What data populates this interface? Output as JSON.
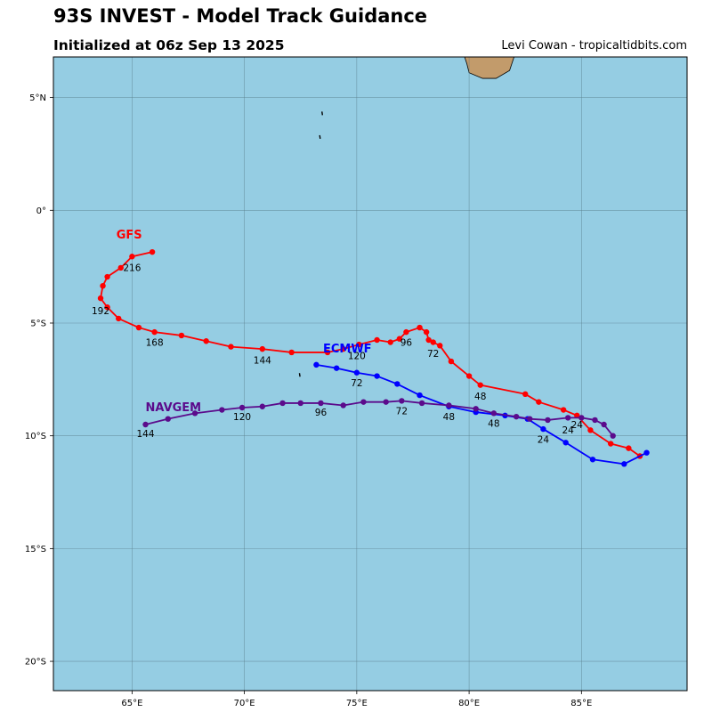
{
  "header": {
    "title": "93S INVEST - Model Track Guidance",
    "subtitle": "Initialized at 06z Sep 13 2025",
    "credit": "Levi Cowan - tropicaltidbits.com"
  },
  "colors": {
    "ocean": "#95cde3",
    "land": "#c29b6b",
    "grid": "#5a7f8c"
  },
  "chart_data": {
    "type": "map-tracks",
    "lon_range": [
      61.5,
      89.7
    ],
    "lat_range": [
      -21.3,
      6.8
    ],
    "x_ticks": [
      {
        "value": 65,
        "label": "65°E"
      },
      {
        "value": 70,
        "label": "70°E"
      },
      {
        "value": 75,
        "label": "75°E"
      },
      {
        "value": 80,
        "label": "80°E"
      },
      {
        "value": 85,
        "label": "85°E"
      }
    ],
    "y_ticks": [
      {
        "value": 5,
        "label": "5°N"
      },
      {
        "value": 0,
        "label": "0°"
      },
      {
        "value": -5,
        "label": "5°S"
      },
      {
        "value": -10,
        "label": "10°S"
      },
      {
        "value": -15,
        "label": "15°S"
      },
      {
        "value": -20,
        "label": "20°S"
      }
    ],
    "grid": true,
    "land": [
      {
        "name": "island-top",
        "points": [
          [
            79.8,
            6.8
          ],
          [
            82.0,
            6.8
          ],
          [
            81.8,
            6.2
          ],
          [
            81.2,
            5.85
          ],
          [
            80.6,
            5.85
          ],
          [
            80.0,
            6.1
          ],
          [
            79.9,
            6.5
          ]
        ]
      }
    ],
    "small_islands": [
      [
        73.45,
        4.3
      ],
      [
        73.35,
        3.25
      ],
      [
        72.45,
        -7.3
      ]
    ],
    "models": [
      {
        "name": "GFS",
        "color": "#ff0000",
        "label_lon": 64.3,
        "label_lat": -1.25,
        "points": [
          [
            87.6,
            -10.9
          ],
          [
            87.1,
            -10.55
          ],
          [
            86.3,
            -10.35
          ],
          [
            85.4,
            -9.75
          ],
          [
            84.8,
            -9.1
          ],
          [
            84.2,
            -8.85
          ],
          [
            83.1,
            -8.5
          ],
          [
            82.5,
            -8.15
          ],
          [
            80.5,
            -7.75
          ],
          [
            80.0,
            -7.35
          ],
          [
            79.2,
            -6.7
          ],
          [
            78.7,
            -6.0
          ],
          [
            78.4,
            -5.85
          ],
          [
            78.2,
            -5.75
          ],
          [
            78.1,
            -5.4
          ],
          [
            77.8,
            -5.2
          ],
          [
            77.2,
            -5.4
          ],
          [
            76.9,
            -5.7
          ],
          [
            76.5,
            -5.85
          ],
          [
            75.9,
            -5.75
          ],
          [
            75.1,
            -5.95
          ],
          [
            74.4,
            -6.15
          ],
          [
            73.7,
            -6.3
          ],
          [
            72.1,
            -6.3
          ],
          [
            70.8,
            -6.15
          ],
          [
            69.4,
            -6.05
          ],
          [
            68.3,
            -5.8
          ],
          [
            67.2,
            -5.55
          ],
          [
            66.0,
            -5.4
          ],
          [
            65.3,
            -5.2
          ],
          [
            64.4,
            -4.8
          ],
          [
            63.9,
            -4.3
          ],
          [
            63.6,
            -3.9
          ],
          [
            63.7,
            -3.35
          ],
          [
            63.9,
            -2.95
          ],
          [
            64.5,
            -2.55
          ],
          [
            65.0,
            -2.05
          ],
          [
            65.9,
            -1.85
          ]
        ],
        "labels": [
          {
            "text": "24",
            "lon": 84.4,
            "lat": -9.9
          },
          {
            "text": "48",
            "lon": 80.5,
            "lat": -8.4
          },
          {
            "text": "72",
            "lon": 78.4,
            "lat": -6.5
          },
          {
            "text": "96",
            "lon": 77.2,
            "lat": -6.0
          },
          {
            "text": "120",
            "lon": 75.0,
            "lat": -6.6
          },
          {
            "text": "144",
            "lon": 70.8,
            "lat": -6.8
          },
          {
            "text": "168",
            "lon": 66.0,
            "lat": -6.0
          },
          {
            "text": "192",
            "lon": 63.6,
            "lat": -4.6
          },
          {
            "text": "216",
            "lon": 65.0,
            "lat": -2.7
          }
        ]
      },
      {
        "name": "ECMWF",
        "color": "#0000ff",
        "label_lon": 73.5,
        "label_lat": -6.3,
        "points": [
          [
            87.9,
            -10.75
          ],
          [
            86.9,
            -11.25
          ],
          [
            85.5,
            -11.05
          ],
          [
            84.3,
            -10.3
          ],
          [
            83.3,
            -9.7
          ],
          [
            82.6,
            -9.25
          ],
          [
            81.6,
            -9.1
          ],
          [
            80.3,
            -8.95
          ],
          [
            79.1,
            -8.7
          ],
          [
            77.8,
            -8.2
          ],
          [
            76.8,
            -7.7
          ],
          [
            75.9,
            -7.35
          ],
          [
            75.0,
            -7.2
          ],
          [
            74.1,
            -7.0
          ],
          [
            73.2,
            -6.85
          ]
        ],
        "labels": [
          {
            "text": "24",
            "lon": 83.3,
            "lat": -10.3
          },
          {
            "text": "48",
            "lon": 79.1,
            "lat": -9.3
          },
          {
            "text": "72",
            "lon": 75.0,
            "lat": -7.8
          }
        ]
      },
      {
        "name": "NAVGEM",
        "color": "#5b0b8c",
        "label_lon": 65.6,
        "label_lat": -8.9,
        "points": [
          [
            86.4,
            -10.0
          ],
          [
            86.0,
            -9.5
          ],
          [
            85.6,
            -9.3
          ],
          [
            85.0,
            -9.2
          ],
          [
            84.4,
            -9.2
          ],
          [
            83.5,
            -9.3
          ],
          [
            82.7,
            -9.25
          ],
          [
            82.1,
            -9.15
          ],
          [
            81.1,
            -9.0
          ],
          [
            80.3,
            -8.8
          ],
          [
            79.1,
            -8.65
          ],
          [
            77.9,
            -8.55
          ],
          [
            77.0,
            -8.45
          ],
          [
            76.3,
            -8.5
          ],
          [
            75.3,
            -8.5
          ],
          [
            74.4,
            -8.65
          ],
          [
            73.4,
            -8.55
          ],
          [
            72.5,
            -8.55
          ],
          [
            71.7,
            -8.55
          ],
          [
            70.8,
            -8.7
          ],
          [
            69.9,
            -8.75
          ],
          [
            69.0,
            -8.85
          ],
          [
            67.8,
            -9.0
          ],
          [
            66.6,
            -9.25
          ],
          [
            65.6,
            -9.5
          ]
        ],
        "labels": [
          {
            "text": "24",
            "lon": 84.8,
            "lat": -9.65
          },
          {
            "text": "48",
            "lon": 81.1,
            "lat": -9.6
          },
          {
            "text": "72",
            "lon": 77.0,
            "lat": -9.05
          },
          {
            "text": "96",
            "lon": 73.4,
            "lat": -9.1
          },
          {
            "text": "120",
            "lon": 69.9,
            "lat": -9.3
          },
          {
            "text": "144",
            "lon": 65.6,
            "lat": -10.05
          }
        ]
      }
    ]
  }
}
